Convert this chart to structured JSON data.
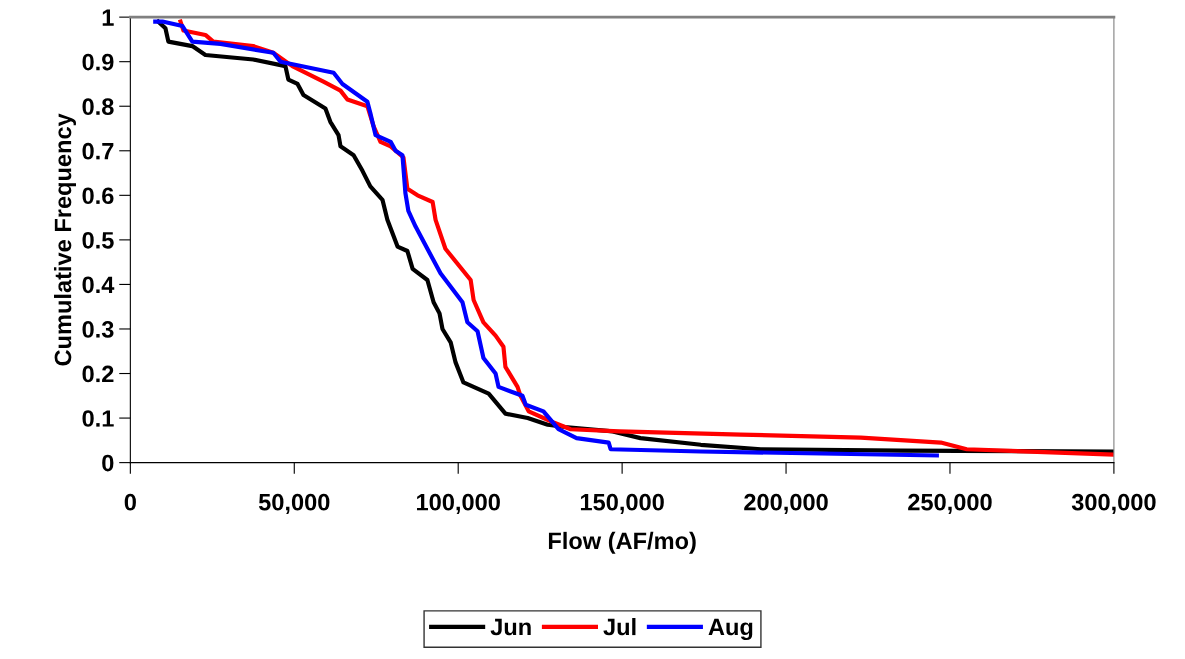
{
  "chart_data": {
    "type": "line",
    "xlabel": "Flow (AF/mo)",
    "ylabel": "Cumulative Frequency",
    "xlim": [
      0,
      300000
    ],
    "ylim": [
      0,
      1
    ],
    "xticks": [
      0,
      {
        "value": 50000,
        "label": "50,000"
      },
      {
        "value": 100000,
        "label": "100,000"
      },
      {
        "value": 150000,
        "label": "150,000"
      },
      {
        "value": 200000,
        "label": "200,000"
      },
      {
        "value": 250000,
        "label": "250,000"
      },
      {
        "value": 300000,
        "label": "300,000"
      }
    ],
    "yticks": [
      0,
      0.1,
      0.2,
      0.3,
      0.4,
      0.5,
      0.6,
      0.7,
      0.8,
      0.9,
      1
    ],
    "grid": false,
    "legend": "bottom",
    "marker": "none",
    "line_style": "solid",
    "series": [
      {
        "name": "Jun",
        "color": "#000000",
        "x": [
          8500,
          10700,
          11600,
          18900,
          22900,
          37500,
          47300,
          48200,
          51000,
          52800,
          59500,
          61000,
          63500,
          64100,
          68100,
          70800,
          73200,
          76900,
          78400,
          81500,
          84500,
          86100,
          90600,
          92500,
          94300,
          95200,
          97700,
          99200,
          101600,
          109300,
          114400,
          121200,
          127300,
          132500,
          147100,
          155600,
          174000,
          192300,
          235000,
          300000
        ],
        "values": [
          0.99,
          0.975,
          0.945,
          0.935,
          0.915,
          0.905,
          0.89,
          0.86,
          0.85,
          0.825,
          0.795,
          0.765,
          0.735,
          0.71,
          0.69,
          0.655,
          0.62,
          0.59,
          0.545,
          0.485,
          0.475,
          0.435,
          0.41,
          0.36,
          0.335,
          0.3,
          0.27,
          0.225,
          0.18,
          0.155,
          0.11,
          0.1,
          0.085,
          0.08,
          0.07,
          0.055,
          0.04,
          0.03,
          0.027,
          0.025
        ]
      },
      {
        "name": "Jul",
        "color": "#ff0000",
        "x": [
          15300,
          16200,
          22900,
          25300,
          37500,
          43600,
          49400,
          58900,
          64100,
          66200,
          72300,
          74200,
          76300,
          79400,
          83300,
          84500,
          87600,
          92200,
          93100,
          96100,
          103800,
          104700,
          107700,
          111400,
          113800,
          114400,
          118100,
          119000,
          121500,
          129100,
          134300,
          149200,
          186200,
          222800,
          247200,
          255100,
          300000
        ],
        "values": [
          0.99,
          0.97,
          0.96,
          0.945,
          0.935,
          0.92,
          0.89,
          0.855,
          0.835,
          0.815,
          0.8,
          0.755,
          0.72,
          0.71,
          0.685,
          0.615,
          0.6,
          0.585,
          0.545,
          0.48,
          0.41,
          0.365,
          0.315,
          0.285,
          0.26,
          0.215,
          0.17,
          0.15,
          0.115,
          0.09,
          0.075,
          0.07,
          0.063,
          0.056,
          0.045,
          0.03,
          0.018
        ]
      },
      {
        "name": "Aug",
        "color": "#0000ff",
        "x": [
          7600,
          9800,
          15900,
          18900,
          27500,
          43600,
          45800,
          62000,
          64700,
          72300,
          73200,
          74800,
          79400,
          80900,
          83000,
          83900,
          84800,
          87000,
          90600,
          94600,
          101300,
          102800,
          105900,
          107700,
          111400,
          112300,
          119600,
          120600,
          126000,
          130600,
          136100,
          145900,
          146500,
          174000,
          246000
        ],
        "values": [
          0.99,
          0.99,
          0.98,
          0.945,
          0.94,
          0.92,
          0.9,
          0.875,
          0.85,
          0.81,
          0.785,
          0.735,
          0.72,
          0.7,
          0.69,
          0.605,
          0.565,
          0.53,
          0.48,
          0.425,
          0.36,
          0.315,
          0.295,
          0.235,
          0.2,
          0.17,
          0.15,
          0.13,
          0.115,
          0.075,
          0.055,
          0.045,
          0.03,
          0.025,
          0.016
        ]
      }
    ]
  }
}
